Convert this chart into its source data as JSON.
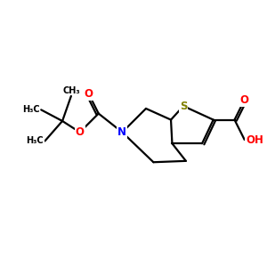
{
  "background_color": "#ffffff",
  "figsize": [
    3.0,
    3.0
  ],
  "dpi": 100,
  "atom_colors": {
    "S": "#808000",
    "N": "#0000ff",
    "O": "#ff0000",
    "C": "#000000"
  },
  "bond_color": "#000000",
  "bond_width": 1.6,
  "font_size_atom": 8.5,
  "font_size_small": 7.0,
  "xlim": [
    0,
    10
  ],
  "ylim": [
    2,
    9
  ]
}
